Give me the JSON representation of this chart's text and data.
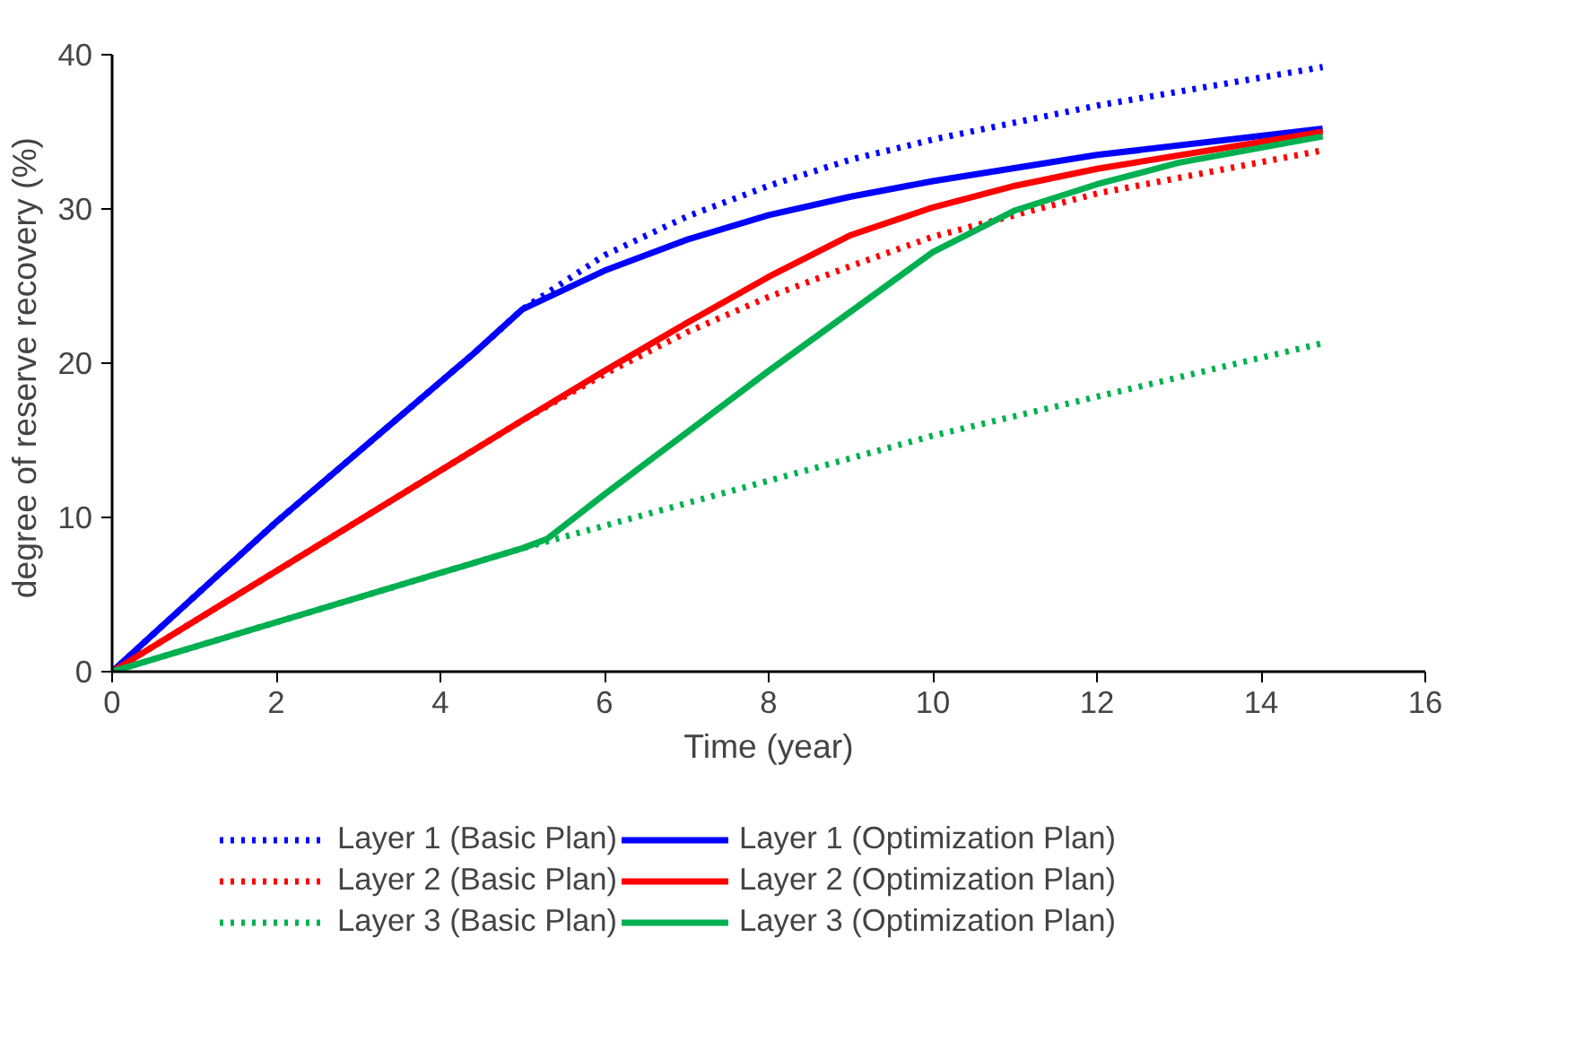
{
  "chart_data": {
    "type": "line",
    "xlabel": "Time (year)",
    "ylabel": "degree of reserve recovery  (%)",
    "xlim": [
      0,
      16
    ],
    "ylim": [
      0,
      40
    ],
    "xticks": [
      0,
      2,
      4,
      6,
      8,
      10,
      12,
      14,
      16
    ],
    "yticks": [
      0,
      10,
      20,
      30,
      40
    ],
    "grid": false,
    "legend": "bottom",
    "series": [
      {
        "name": "Layer 1 (Basic Plan)",
        "color": "#0000ff",
        "line_style": "dotted",
        "x": [
          0,
          2,
          4.4,
          5,
          6,
          7,
          8,
          9,
          10,
          12,
          14.75
        ],
        "values": [
          0,
          9.7,
          20.6,
          23.5,
          27,
          29.5,
          31.5,
          33.2,
          34.5,
          36.7,
          39.2
        ]
      },
      {
        "name": "Layer 2 (Basic Plan)",
        "color": "#ff0000",
        "line_style": "dotted",
        "x": [
          0,
          5,
          6,
          7,
          8,
          9,
          10,
          12,
          14.75
        ],
        "values": [
          0,
          16.3,
          19.3,
          22,
          24.3,
          26.3,
          28.2,
          31,
          33.8
        ]
      },
      {
        "name": "Layer 3 (Basic Plan)",
        "color": "#00b050",
        "line_style": "dotted",
        "x": [
          0,
          5,
          10,
          14.75
        ],
        "values": [
          0,
          8,
          15.3,
          21.3
        ]
      },
      {
        "name": "Layer 1 (Optimization Plan)",
        "color": "#0000ff",
        "line_style": "solid",
        "x": [
          0,
          2,
          4.4,
          5,
          6,
          7,
          8,
          9,
          10,
          12,
          14.75
        ],
        "values": [
          0,
          9.7,
          20.6,
          23.5,
          26,
          28,
          29.6,
          30.8,
          31.8,
          33.5,
          35.2
        ]
      },
      {
        "name": "Layer 2 (Optimization Plan)",
        "color": "#ff0000",
        "line_style": "solid",
        "x": [
          0,
          5,
          6,
          7,
          8,
          9,
          10,
          11,
          12,
          14.75
        ],
        "values": [
          0,
          16.3,
          19.5,
          22.6,
          25.6,
          28.3,
          30.1,
          31.5,
          32.6,
          35
        ]
      },
      {
        "name": "Layer 3 (Optimization Plan)",
        "color": "#00b050",
        "line_style": "solid",
        "x": [
          0,
          5,
          5.3,
          6,
          8,
          10,
          11,
          12,
          13,
          14.75
        ],
        "values": [
          0,
          8,
          8.6,
          11.5,
          19.5,
          27.2,
          29.9,
          31.6,
          33,
          34.7
        ]
      }
    ]
  }
}
